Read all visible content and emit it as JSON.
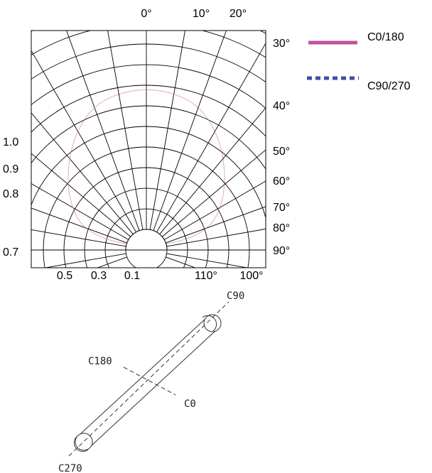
{
  "polar_chart": {
    "angle_labels_top": [
      "0°",
      "10°",
      "20°"
    ],
    "angle_labels_right": [
      "30°",
      "40°",
      "50°",
      "60°",
      "70°",
      "80°",
      "90°"
    ],
    "radial_labels_left": [
      "1.0",
      "0.9",
      "0.8",
      "0.7"
    ],
    "bottom_labels": [
      "0.5",
      "0.3",
      "0.1",
      "110°",
      "100°"
    ]
  },
  "legend": {
    "items": [
      {
        "label": "C0/180",
        "color": "#c0529a",
        "style": "solid"
      },
      {
        "label": "C90/270",
        "color": "#3c4fa8",
        "style": "dotted"
      }
    ]
  },
  "chart_data": {
    "type": "polar",
    "series": [
      {
        "name": "C0/180",
        "color": "#c0529a",
        "shape": "batwing-circle"
      },
      {
        "name": "C90/270",
        "color": "#3c4fa8",
        "shape": "circle"
      }
    ]
  },
  "tube_diagram": {
    "labels": [
      "C90",
      "C180",
      "C0",
      "C270"
    ]
  }
}
